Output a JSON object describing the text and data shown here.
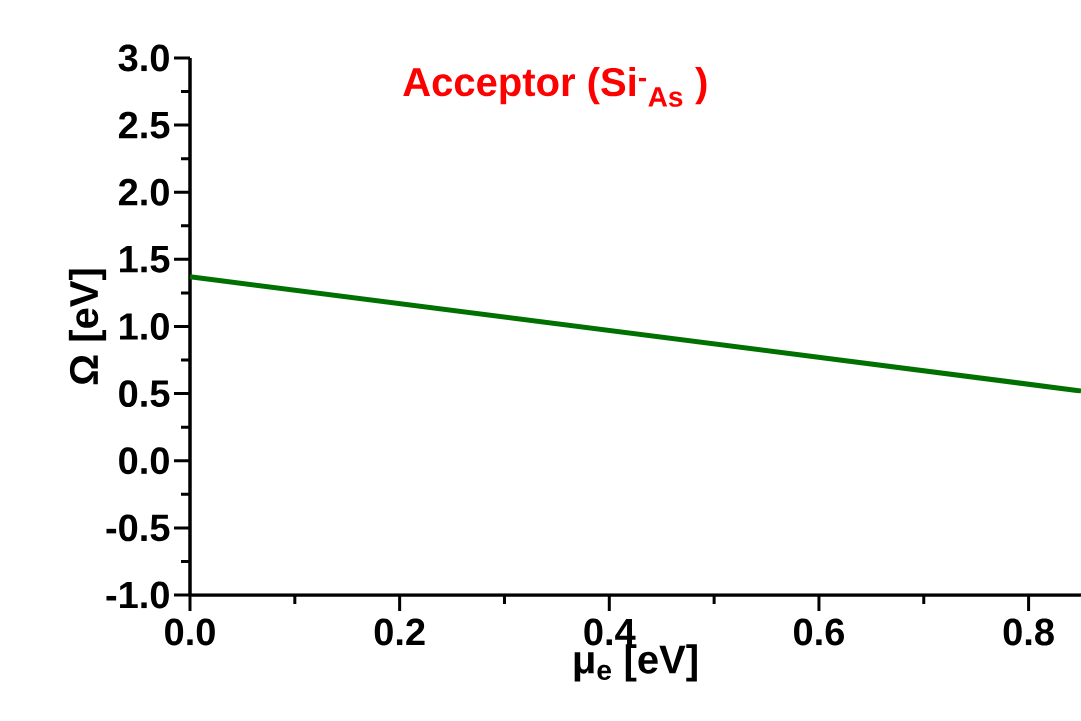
{
  "chart_data": {
    "type": "line",
    "xlabel": "μ$_{e}$ [eV]",
    "ylabel": "Ω  [eV]",
    "annotations": [
      "Acceptor (Si$^{-}$$_{As}$ )"
    ],
    "x": [
      0,
      0.85
    ],
    "series": [
      {
        "color": "#007000",
        "values": [
          1.37,
          0.52
        ]
      }
    ],
    "xlim": [
      0,
      0.85
    ],
    "ylim": [
      -1.0,
      3.0
    ],
    "xticks": [
      {
        "value": 0,
        "label": "0.0"
      },
      {
        "value": 0.2,
        "label": "0.2"
      },
      {
        "value": 0.4,
        "label": "0.4"
      },
      {
        "value": 0.6,
        "label": "0.6"
      },
      {
        "value": 0.8,
        "label": "0.8"
      }
    ],
    "yticks": [
      {
        "value": -1,
        "label": "-1.0"
      },
      {
        "value": -0.5,
        "label": "-0.5"
      },
      {
        "value": 0,
        "label": "0.0"
      },
      {
        "value": 0.5,
        "label": "0.5"
      },
      {
        "value": 1,
        "label": "1.0"
      },
      {
        "value": 1.5,
        "label": "1.5"
      },
      {
        "value": 2,
        "label": "2.0"
      },
      {
        "value": 2.5,
        "label": "2.5"
      },
      {
        "value": 3,
        "label": "3.0"
      }
    ],
    "marker": "none",
    "line_style": "solid"
  }
}
